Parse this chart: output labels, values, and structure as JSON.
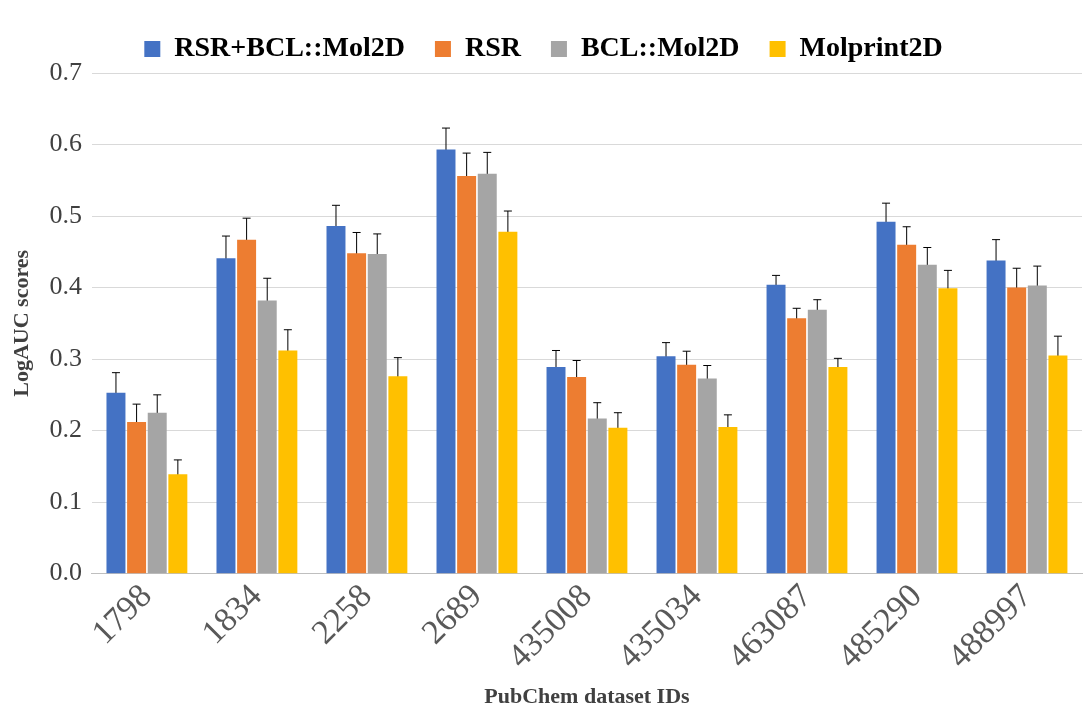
{
  "chart_data": {
    "type": "bar",
    "xlabel": "PubChem dataset IDs",
    "ylabel": "LogAUC scores",
    "categories": [
      "1798",
      "1834",
      "2258",
      "2689",
      "435008",
      "435034",
      "463087",
      "485290",
      "488997"
    ],
    "series": [
      {
        "name": "RSR+BCL::Mol2D",
        "color": "#4472c4",
        "values": [
          0.253,
          0.441,
          0.486,
          0.593,
          0.289,
          0.304,
          0.404,
          0.492,
          0.438
        ],
        "errors": [
          0.028,
          0.031,
          0.029,
          0.03,
          0.023,
          0.019,
          0.013,
          0.026,
          0.029
        ]
      },
      {
        "name": "RSR",
        "color": "#ed7d31",
        "values": [
          0.212,
          0.467,
          0.448,
          0.556,
          0.275,
          0.292,
          0.357,
          0.46,
          0.4
        ],
        "errors": [
          0.025,
          0.03,
          0.029,
          0.032,
          0.023,
          0.019,
          0.014,
          0.025,
          0.027
        ]
      },
      {
        "name": "BCL::Mol2D",
        "color": "#a5a5a5",
        "values": [
          0.225,
          0.382,
          0.447,
          0.559,
          0.217,
          0.273,
          0.369,
          0.432,
          0.403
        ],
        "errors": [
          0.025,
          0.031,
          0.028,
          0.03,
          0.022,
          0.018,
          0.014,
          0.024,
          0.027
        ]
      },
      {
        "name": "Molprint2D",
        "color": "#ffc000",
        "values": [
          0.139,
          0.312,
          0.276,
          0.478,
          0.204,
          0.205,
          0.289,
          0.399,
          0.305
        ],
        "errors": [
          0.02,
          0.029,
          0.026,
          0.029,
          0.021,
          0.017,
          0.012,
          0.025,
          0.027
        ]
      }
    ],
    "ylim": [
      0,
      0.7
    ],
    "yticks": [
      {
        "value": 0,
        "label": "0.0"
      },
      {
        "value": 0.1,
        "label": "0.1"
      },
      {
        "value": 0.2,
        "label": "0.2"
      },
      {
        "value": 0.3,
        "label": "0.3"
      },
      {
        "value": 0.4,
        "label": "0.4"
      },
      {
        "value": 0.5,
        "label": "0.5"
      },
      {
        "value": 0.6,
        "label": "0.6"
      },
      {
        "value": 0.7,
        "label": "0.7"
      }
    ],
    "grid": "y",
    "legend": "top"
  }
}
